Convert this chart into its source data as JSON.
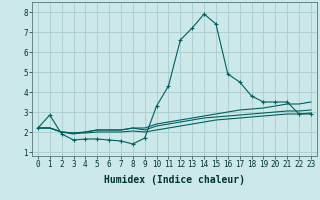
{
  "xlabel": "Humidex (Indice chaleur)",
  "ylabel": "",
  "bg_color": "#cce8e8",
  "grid_color": "#aacccc",
  "line_color": "#006060",
  "xlim": [
    -0.5,
    23.5
  ],
  "ylim": [
    0.8,
    8.5
  ],
  "yticks": [
    1,
    2,
    3,
    4,
    5,
    6,
    7,
    8
  ],
  "xticks": [
    0,
    1,
    2,
    3,
    4,
    5,
    6,
    7,
    8,
    9,
    10,
    11,
    12,
    13,
    14,
    15,
    16,
    17,
    18,
    19,
    20,
    21,
    22,
    23
  ],
  "line1": [
    2.2,
    2.85,
    1.9,
    1.6,
    1.65,
    1.65,
    1.6,
    1.55,
    1.4,
    1.7,
    3.3,
    4.3,
    6.6,
    7.2,
    7.9,
    7.4,
    4.9,
    4.5,
    3.8,
    3.5,
    3.5,
    3.5,
    2.9,
    2.9
  ],
  "line2": [
    2.2,
    2.2,
    2.0,
    1.9,
    2.0,
    2.1,
    2.1,
    2.1,
    2.2,
    2.2,
    2.4,
    2.5,
    2.6,
    2.7,
    2.8,
    2.9,
    3.0,
    3.1,
    3.15,
    3.2,
    3.3,
    3.4,
    3.4,
    3.5
  ],
  "line3": [
    2.2,
    2.2,
    2.0,
    1.95,
    2.0,
    2.1,
    2.1,
    2.1,
    2.2,
    2.1,
    2.3,
    2.4,
    2.5,
    2.6,
    2.7,
    2.75,
    2.8,
    2.85,
    2.9,
    2.95,
    3.0,
    3.05,
    3.05,
    3.1
  ],
  "line4": [
    2.2,
    2.2,
    2.0,
    1.95,
    1.95,
    2.0,
    2.0,
    2.0,
    2.05,
    2.0,
    2.1,
    2.2,
    2.3,
    2.4,
    2.5,
    2.6,
    2.65,
    2.7,
    2.75,
    2.8,
    2.85,
    2.9,
    2.9,
    2.95
  ],
  "figsize": [
    3.2,
    2.0
  ],
  "dpi": 100,
  "tick_fontsize": 5.5,
  "xlabel_fontsize": 7
}
